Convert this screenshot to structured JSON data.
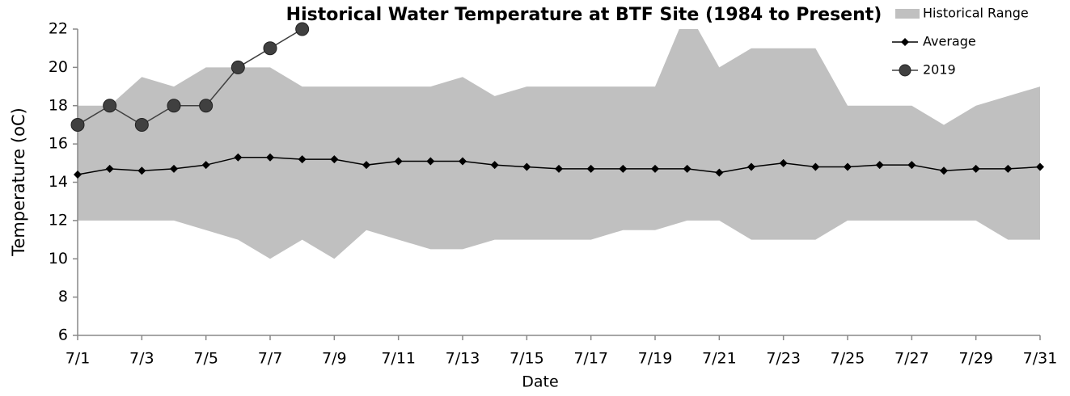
{
  "chart_data": {
    "type": "line",
    "title": "Historical Water Temperature at BTF Site (1984 to Present)",
    "x_label": "Date",
    "y_label": "Temperature (oC)",
    "categories": [
      "7/1",
      null,
      "7/3",
      null,
      "7/5",
      null,
      "7/7",
      null,
      "7/9",
      null,
      "7/11",
      null,
      "7/13",
      null,
      "7/15",
      null,
      "7/17",
      null,
      "7/19",
      null,
      "7/21",
      null,
      "7/23",
      null,
      "7/25",
      null,
      "7/27",
      null,
      "7/29",
      null,
      "7/31"
    ],
    "ylim": [
      6,
      22
    ],
    "yticks": [
      6,
      8,
      10,
      12,
      14,
      16,
      18,
      20,
      22
    ],
    "grid": false,
    "legend": "top-right",
    "series": [
      {
        "name": "Historical Range",
        "kind": "range",
        "color": "#c0c0c0",
        "low": [
          12,
          12,
          12,
          12,
          11.5,
          11,
          10,
          11,
          10,
          11.5,
          11,
          10.5,
          10.5,
          11,
          11,
          11,
          11,
          11.5,
          11.5,
          12,
          12,
          11,
          11,
          11,
          12,
          12,
          12,
          12,
          12,
          11,
          11
        ],
        "high": [
          18,
          18,
          19.5,
          19,
          20,
          20,
          20,
          19,
          19,
          19,
          19,
          19,
          19.5,
          18.5,
          19,
          19,
          19,
          19,
          19,
          23,
          20,
          21,
          21,
          21,
          18,
          18,
          18,
          17,
          18,
          18.5,
          19
        ]
      },
      {
        "name": "Average",
        "kind": "line",
        "marker": "diamond",
        "color": "#000000",
        "values": [
          14.4,
          14.7,
          14.6,
          14.7,
          14.9,
          15.3,
          15.3,
          15.2,
          15.2,
          14.9,
          15.1,
          15.1,
          15.1,
          14.9,
          14.8,
          14.7,
          14.7,
          14.7,
          14.7,
          14.7,
          14.5,
          14.8,
          15.0,
          14.8,
          14.8,
          14.9,
          14.9,
          14.6,
          14.7,
          14.7,
          14.8
        ]
      },
      {
        "name": "2019",
        "kind": "line",
        "marker": "circle",
        "color": "#404040",
        "values": [
          17,
          18,
          17,
          18,
          18,
          20,
          21,
          22,
          null,
          null,
          null,
          null,
          null,
          null,
          null,
          null,
          null,
          null,
          null,
          null,
          null,
          null,
          null,
          null,
          null,
          null,
          null,
          null,
          null,
          null,
          null
        ]
      }
    ]
  }
}
